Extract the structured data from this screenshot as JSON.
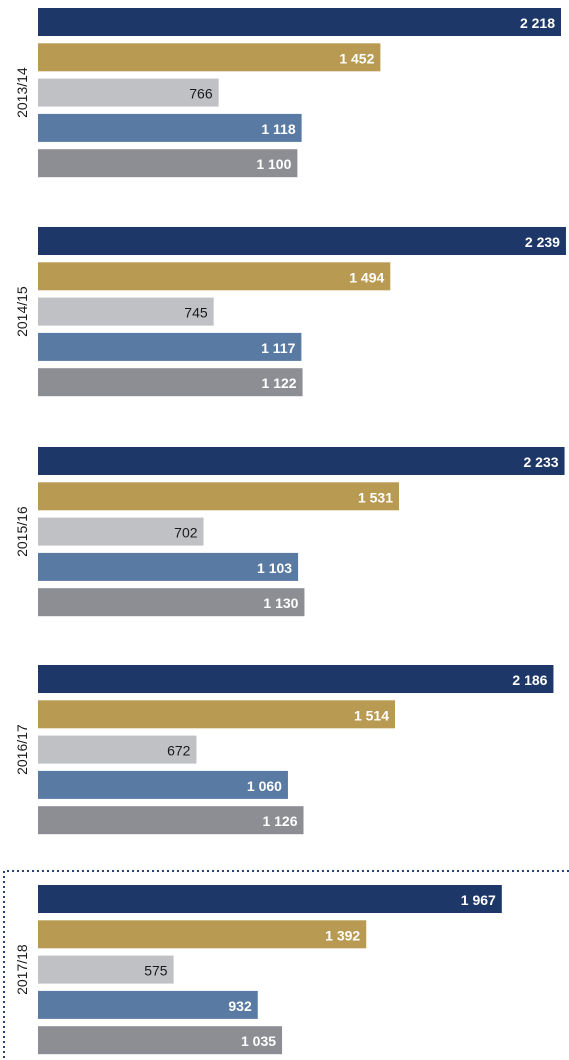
{
  "chart_data": {
    "type": "bar",
    "orientation": "horizontal",
    "grid": false,
    "legend": "none",
    "colors": [
      "#1d3868",
      "#b89a52",
      "#bfc1c5",
      "#587aa3",
      "#8c8e93"
    ],
    "text_colors": [
      "#ffffff",
      "#ffffff",
      "#1a1a1a",
      "#ffffff",
      "#ffffff"
    ],
    "groups": [
      {
        "label": "2013/14",
        "values": [
          2218,
          1452,
          766,
          1118,
          1100
        ],
        "labels": [
          "2 218",
          "1 452",
          "766",
          "1 118",
          "1 100"
        ]
      },
      {
        "label": "2014/15",
        "values": [
          2239,
          1494,
          745,
          1117,
          1122
        ],
        "labels": [
          "2 239",
          "1 494",
          "745",
          "1 117",
          "1 122"
        ]
      },
      {
        "label": "2015/16",
        "values": [
          2233,
          1531,
          702,
          1103,
          1130
        ],
        "labels": [
          "2 233",
          "1 531",
          "702",
          "1 103",
          "1 130"
        ]
      },
      {
        "label": "2016/17",
        "values": [
          2186,
          1514,
          672,
          1060,
          1126
        ],
        "labels": [
          "2 186",
          "1 514",
          "672",
          "1 060",
          "1 126"
        ]
      },
      {
        "label": "2017/18",
        "values": [
          1967,
          1392,
          575,
          932,
          1035
        ],
        "labels": [
          "1 967",
          "1 392",
          "575",
          "932",
          "1 035"
        ]
      }
    ],
    "highlighted_group": "2017/18"
  }
}
